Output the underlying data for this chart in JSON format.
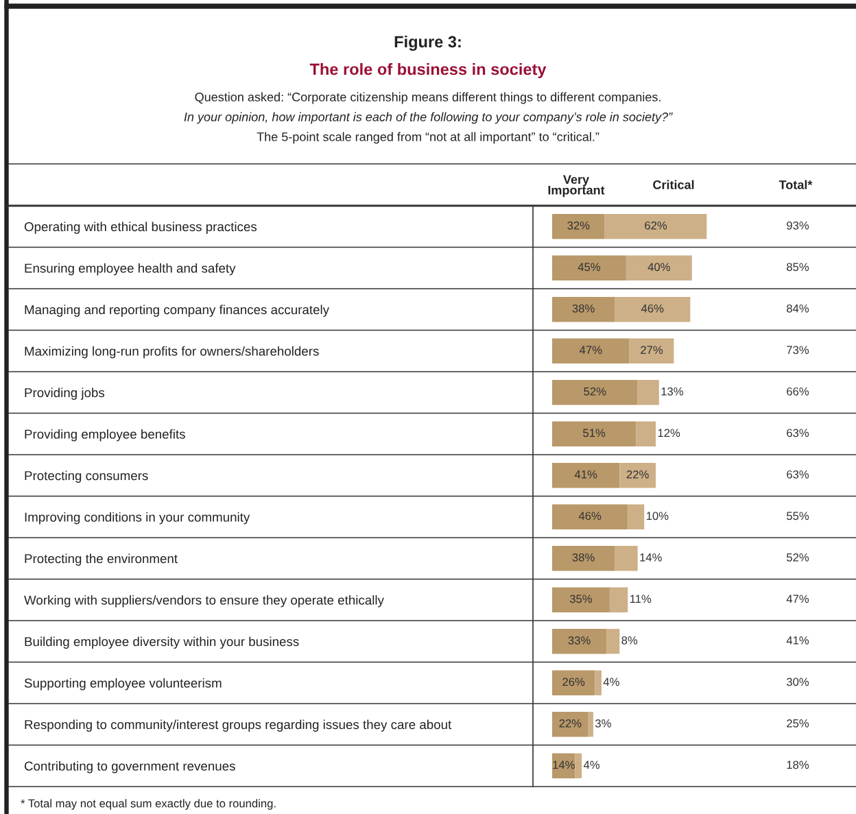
{
  "chart_data": {
    "type": "bar",
    "orientation": "horizontal",
    "stacked": true,
    "title": "Figure 3:",
    "subtitle": "The role of business in society",
    "annotations": [
      "Question asked: “Corporate citizenship means different things to different companies.",
      "In your opinion, how important is each of the following to your company’s role in society?”",
      "The 5-point scale ranged from “not at all important” to “critical.”",
      "Total*",
      "* Total may not equal sum exactly due to rounding.",
      "93%",
      "85%",
      "84%",
      "73%",
      "66%",
      "63%",
      "63%",
      "55%",
      "52%",
      "47%",
      "41%",
      "30%",
      "25%",
      "18%"
    ],
    "categories": [
      "Operating with ethical business practices",
      "Ensuring employee health and safety",
      "Managing and reporting company finances accurately",
      "Maximizing long-run profits for owners/shareholders",
      "Providing jobs",
      "Providing employee benefits",
      "Protecting consumers",
      "Improving conditions in your community",
      "Protecting the environment",
      "Working with suppliers/vendors to ensure they operate ethically",
      "Building employee diversity within your business",
      "Supporting employee volunteerism",
      "Responding to community/interest groups regarding issues they care about",
      "Contributing to government revenues"
    ],
    "series": [
      {
        "name": "Very Important",
        "color": "#b99869",
        "values": [
          32,
          45,
          38,
          47,
          52,
          51,
          41,
          46,
          38,
          35,
          33,
          26,
          22,
          14
        ],
        "value_labels": [
          "32%",
          "45%",
          "38%",
          "47%",
          "52%",
          "51%",
          "41%",
          "46%",
          "38%",
          "35%",
          "33%",
          "26%",
          "22%",
          "14%"
        ]
      },
      {
        "name": "Critical",
        "color": "#cdb088",
        "values": [
          62,
          40,
          46,
          27,
          13,
          12,
          22,
          10,
          14,
          11,
          8,
          4,
          3,
          4
        ],
        "value_labels": [
          "62%",
          "40%",
          "46%",
          "27%",
          "13%",
          "12%",
          "22%",
          "10%",
          "14%",
          "11%",
          "8%",
          "4%",
          "3%",
          "4%"
        ]
      }
    ],
    "tick_labels": "y",
    "grid": false,
    "legend": false
  }
}
